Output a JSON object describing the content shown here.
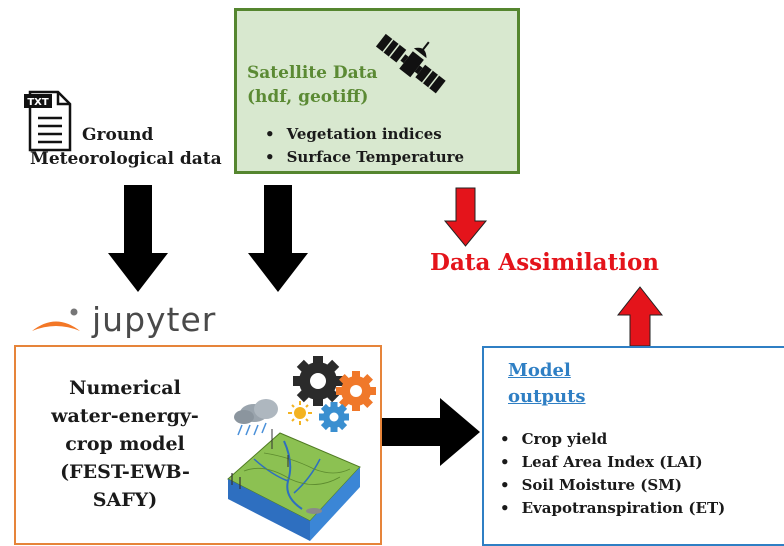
{
  "satellite": {
    "title_line1": "Satellite Data",
    "title_line2": "(hdf, geotiff)",
    "items": [
      "Vegetation indices",
      "Surface Temperature"
    ]
  },
  "ground": {
    "icon_label": "TXT",
    "line1": "Ground",
    "line2": "Meteorological data"
  },
  "jupyter": {
    "wordmark": "jupyter"
  },
  "model": {
    "lines": [
      "Numerical",
      "water-energy-",
      "crop model",
      "(FEST-EWB-",
      "SAFY)"
    ]
  },
  "outputs": {
    "title_line1": "Model",
    "title_line2": "outputs",
    "items": [
      "Crop yield",
      "Leaf Area Index (LAI)",
      "Soil Moisture (SM)",
      "Evapotranspiration (ET)"
    ]
  },
  "assimilation": {
    "label": "Data Assimilation"
  },
  "colors": {
    "satellite_fill": "#d8e8cf",
    "satellite_border": "#55862f",
    "model_border": "#e6843a",
    "outputs_border": "#2f7fc4",
    "assimilation_red": "#e4141b",
    "arrow_black": "#000000"
  }
}
